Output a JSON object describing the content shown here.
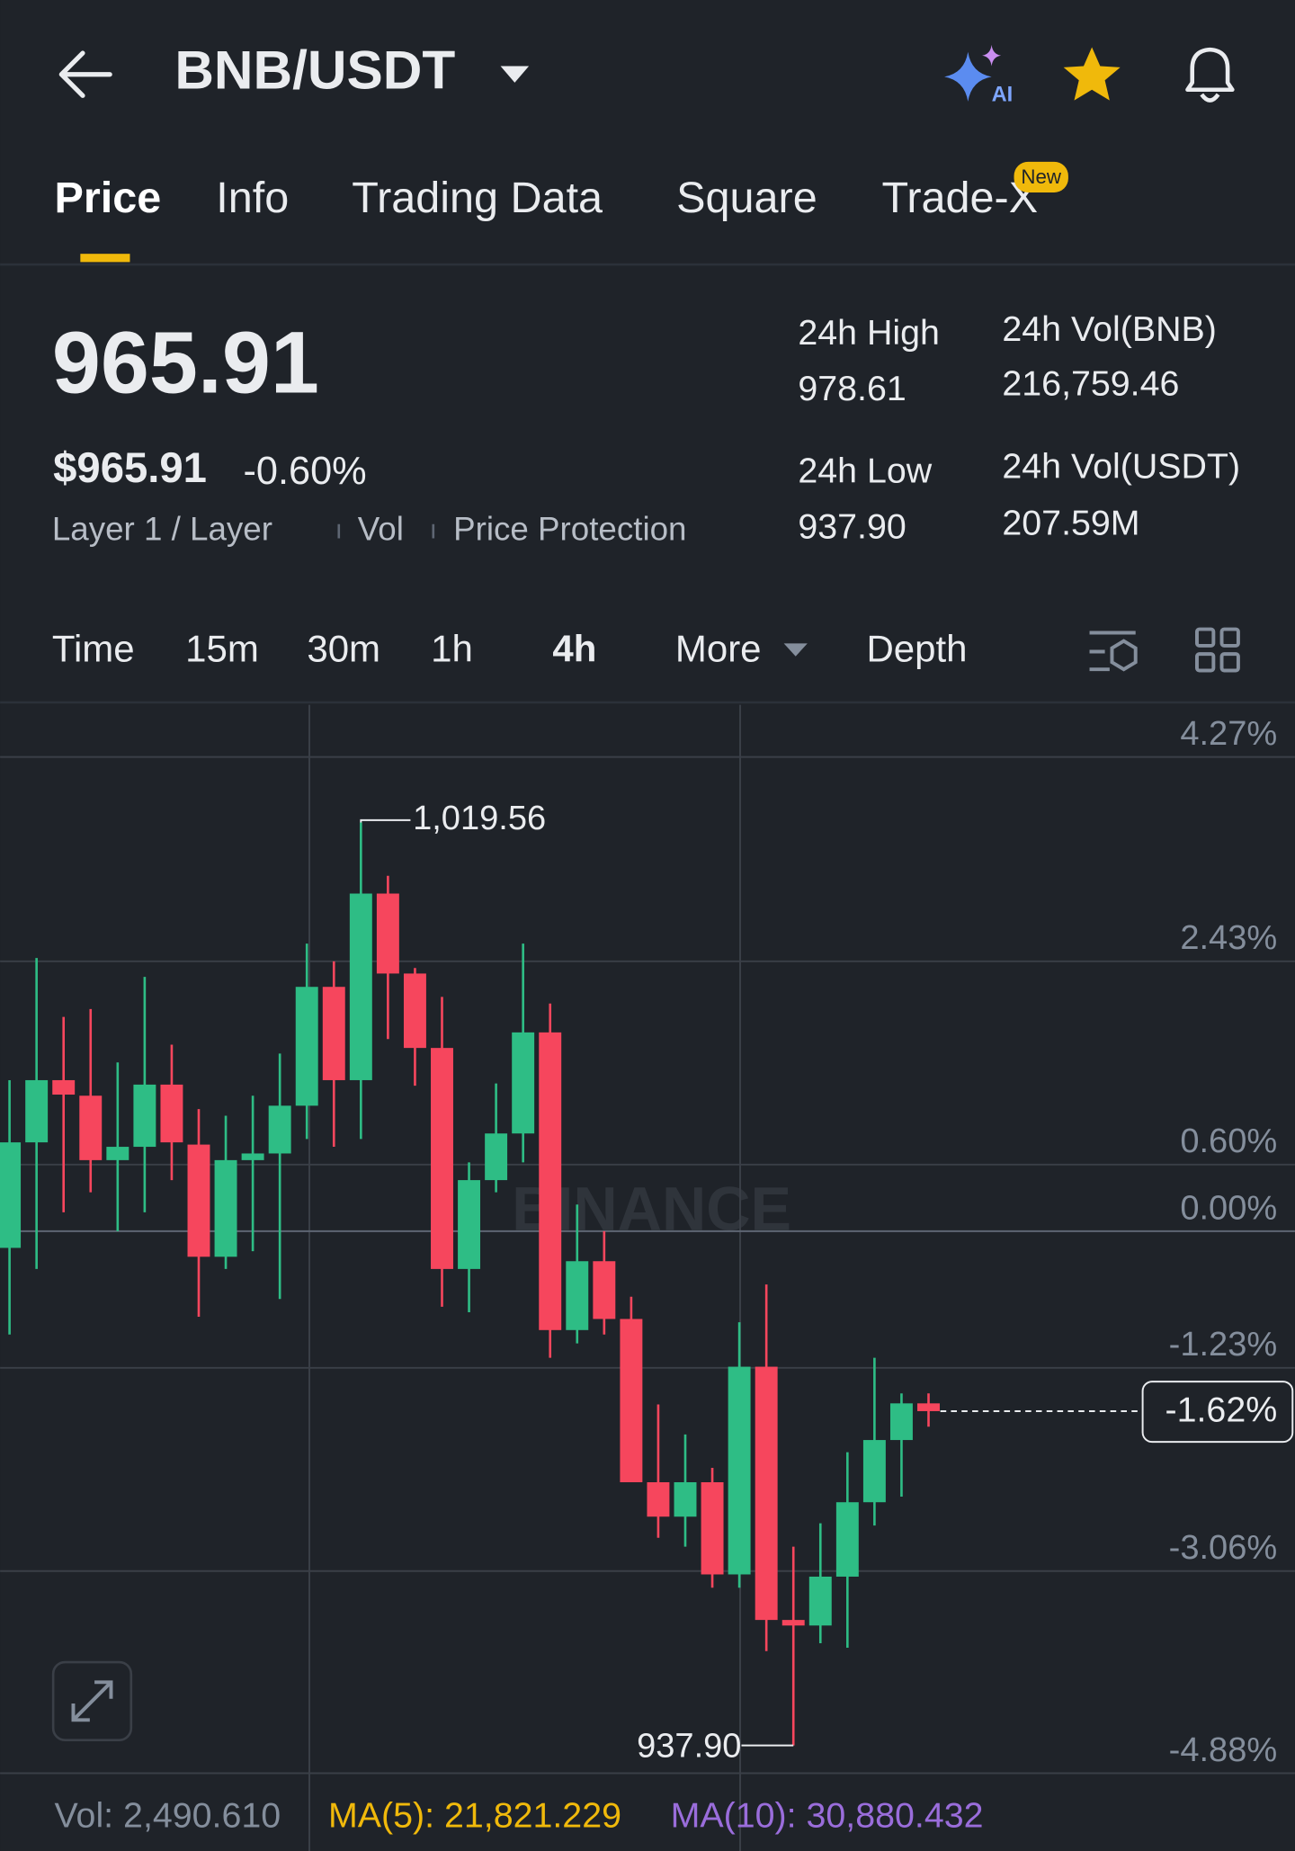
{
  "header": {
    "pair": "BNB/USDT"
  },
  "tabs": [
    "Price",
    "Info",
    "Trading Data",
    "Square",
    "Trade-X"
  ],
  "new_badge": "New",
  "price": {
    "last": "965.91",
    "usd": "$965.91",
    "change": "-0.60%",
    "tags": [
      "Layer 1 / Layer",
      "Vol",
      "Price Protection"
    ]
  },
  "stats": [
    {
      "label": "24h High",
      "value": "978.61"
    },
    {
      "label": "24h Vol(BNB)",
      "value": "216,759.46"
    },
    {
      "label": "24h Low",
      "value": "937.90"
    },
    {
      "label": "24h Vol(USDT)",
      "value": "207.59M"
    }
  ],
  "intervals": [
    "Time",
    "15m",
    "30m",
    "1h",
    "4h",
    "More",
    "Depth"
  ],
  "chart_data": {
    "type": "candlestick",
    "watermark": "BINANCE",
    "ylim": [
      -5.07,
      4.74
    ],
    "yticks": [
      {
        "value": 4.27,
        "label": "4.27%"
      },
      {
        "value": 2.43,
        "label": "2.43%"
      },
      {
        "value": 0.6,
        "label": "0.60%"
      },
      {
        "value": 0,
        "label": "0.00%"
      },
      {
        "value": -1.23,
        "label": "-1.23%"
      },
      {
        "value": -3.06,
        "label": "-3.06%"
      },
      {
        "value": -4.88,
        "label": "-4.88%"
      }
    ],
    "current": {
      "value": -1.62,
      "label": "-1.62%"
    },
    "high_label": "1,019.56",
    "low_label": "937.90",
    "up_color": "#2ebd85",
    "down_color": "#f6465d",
    "open": [
      -0.15,
      0.8,
      1.36,
      1.22,
      0.64,
      0.76,
      1.32,
      0.78,
      -0.23,
      0.64,
      0.7,
      1.13,
      2.2,
      1.36,
      3.04,
      2.32,
      1.65,
      -0.34,
      0.46,
      0.88,
      1.79,
      -0.89,
      -0.27,
      -0.79,
      -2.26,
      -2.57,
      -2.26,
      -3.09,
      -1.22,
      -3.5,
      -3.55,
      -3.11,
      -2.44,
      -1.88,
      -1.55
    ],
    "close": [
      0.8,
      1.36,
      1.23,
      0.64,
      0.76,
      1.32,
      0.8,
      -0.23,
      0.64,
      0.7,
      1.13,
      2.2,
      1.36,
      3.04,
      2.32,
      1.65,
      -0.34,
      0.46,
      0.88,
      1.79,
      -0.89,
      -0.27,
      -0.79,
      -2.26,
      -2.57,
      -2.26,
      -3.09,
      -1.22,
      -3.5,
      -3.55,
      -3.11,
      -2.44,
      -1.88,
      -1.55,
      -1.62
    ],
    "high": [
      1.36,
      2.46,
      1.93,
      2.0,
      1.52,
      2.29,
      1.68,
      1.1,
      1.04,
      1.22,
      1.6,
      2.59,
      2.43,
      3.68,
      3.2,
      2.37,
      2.11,
      0.62,
      1.33,
      2.59,
      2.05,
      0.24,
      0.0,
      -0.59,
      -1.56,
      -1.83,
      -2.13,
      -0.82,
      -0.48,
      -2.84,
      -2.63,
      -1.99,
      -1.14,
      -1.46,
      -1.46
    ],
    "low": [
      -0.93,
      -0.34,
      0.17,
      0.35,
      0.0,
      0.17,
      0.46,
      -0.77,
      -0.34,
      -0.18,
      -0.61,
      0.83,
      0.76,
      0.83,
      1.73,
      1.31,
      -0.68,
      -0.73,
      0.35,
      0.62,
      -1.14,
      -1.01,
      -0.93,
      -2.26,
      -2.76,
      -2.84,
      -3.21,
      -3.21,
      -3.78,
      -4.63,
      -3.71,
      -3.75,
      -2.65,
      -2.39,
      -1.76
    ]
  },
  "footer": {
    "vol": "Vol: 2,490.610",
    "ma5": "MA(5): 21,821.229",
    "ma10": "MA(10): 30,880.432"
  }
}
